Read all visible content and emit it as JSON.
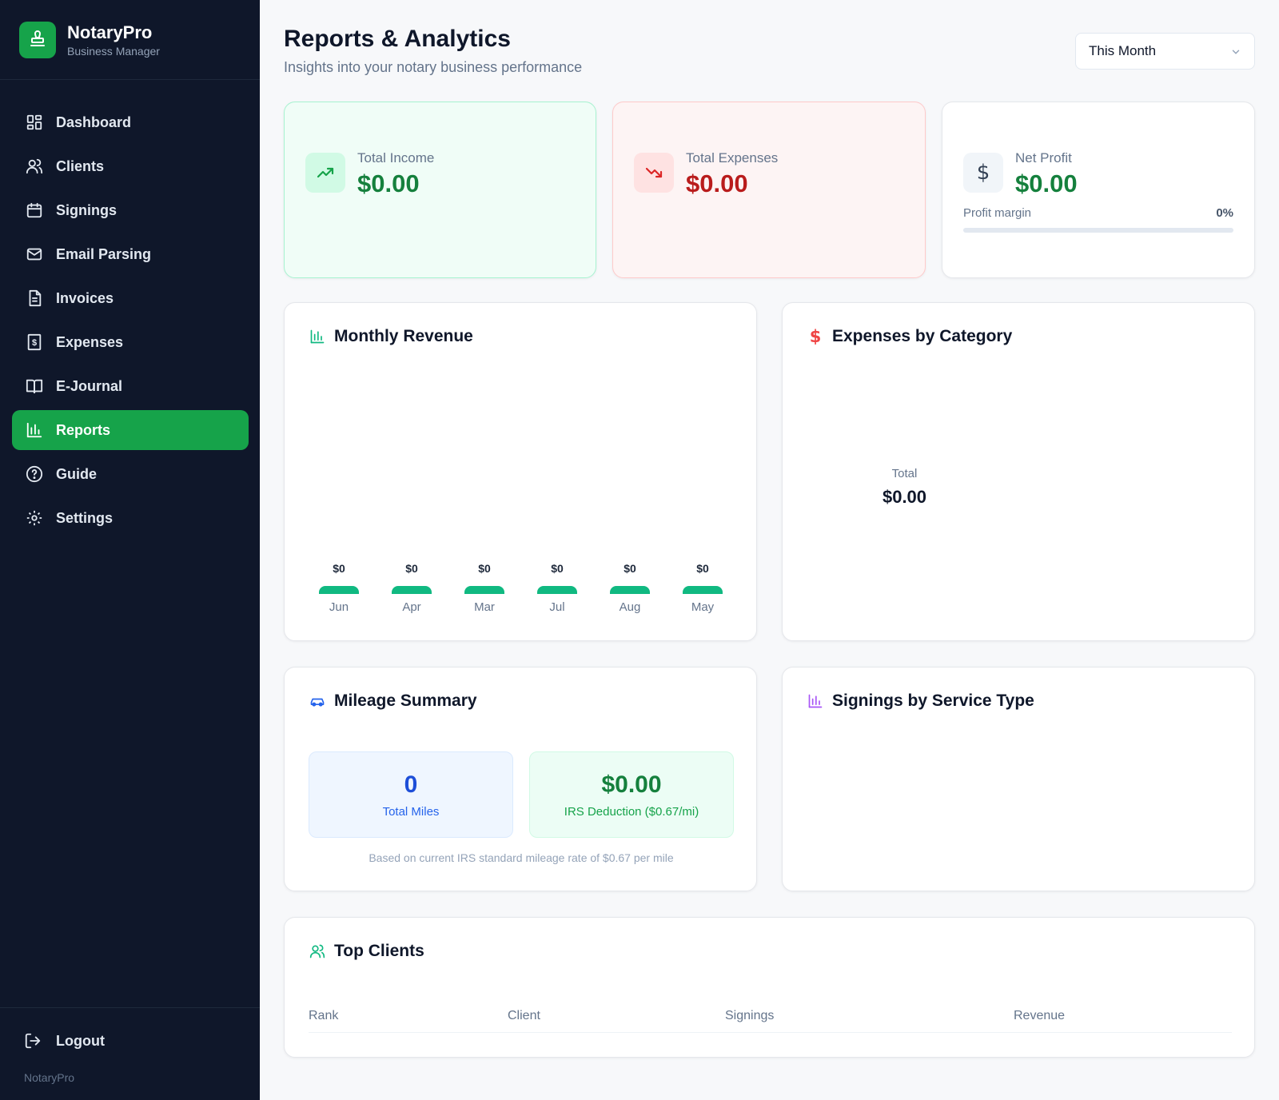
{
  "app": {
    "name": "NotaryPro",
    "subtitle": "Business Manager",
    "footer": "NotaryPro"
  },
  "sidebar": {
    "items": [
      {
        "label": "Dashboard",
        "icon": "grid-icon"
      },
      {
        "label": "Clients",
        "icon": "users-icon"
      },
      {
        "label": "Signings",
        "icon": "calendar-icon"
      },
      {
        "label": "Email Parsing",
        "icon": "mail-icon"
      },
      {
        "label": "Invoices",
        "icon": "document-icon"
      },
      {
        "label": "Expenses",
        "icon": "receipt-icon"
      },
      {
        "label": "E-Journal",
        "icon": "book-icon"
      },
      {
        "label": "Reports",
        "icon": "bar-chart-icon",
        "active": true
      },
      {
        "label": "Guide",
        "icon": "help-icon"
      },
      {
        "label": "Settings",
        "icon": "gear-icon"
      }
    ],
    "logout": "Logout"
  },
  "header": {
    "title": "Reports & Analytics",
    "subtitle": "Insights into your notary business performance",
    "period": "This Month"
  },
  "stats": {
    "income": {
      "label": "Total Income",
      "value": "$0.00"
    },
    "expenses": {
      "label": "Total Expenses",
      "value": "$0.00"
    },
    "profit": {
      "label": "Net Profit",
      "value": "$0.00",
      "margin_label": "Profit margin",
      "margin_value": "0%",
      "margin_fraction": 0
    }
  },
  "monthly_revenue": {
    "title": "Monthly Revenue"
  },
  "expenses_by_category": {
    "title": "Expenses by Category",
    "total_label": "Total",
    "total_value": "$0.00"
  },
  "mileage": {
    "title": "Mileage Summary",
    "miles_value": "0",
    "miles_label": "Total Miles",
    "deduction_value": "$0.00",
    "deduction_label": "IRS Deduction ($0.67/mi)",
    "note": "Based on current IRS standard mileage rate of $0.67 per mile"
  },
  "signings_by_type": {
    "title": "Signings by Service Type"
  },
  "top_clients": {
    "title": "Top Clients",
    "columns": [
      "Rank",
      "Client",
      "Signings",
      "Revenue"
    ]
  },
  "colors": {
    "brand": "#16a34a",
    "sidebar": "#0f172a",
    "income": "#15803d",
    "expense": "#b91c1c",
    "bar": "#10b981"
  },
  "chart_data": {
    "type": "bar",
    "categories": [
      "Jun",
      "Apr",
      "Mar",
      "Jul",
      "Aug",
      "May"
    ],
    "values": [
      0,
      0,
      0,
      0,
      0,
      0
    ],
    "value_labels": [
      "$0",
      "$0",
      "$0",
      "$0",
      "$0",
      "$0"
    ],
    "title": "Monthly Revenue"
  }
}
